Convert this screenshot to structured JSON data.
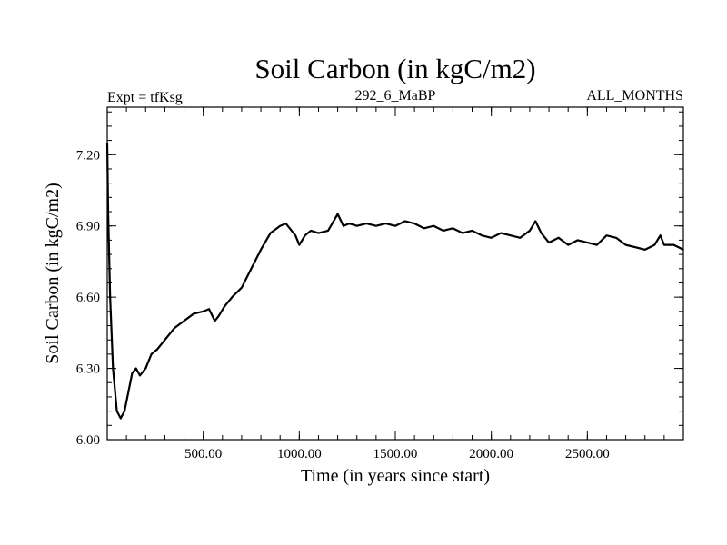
{
  "chart_data": {
    "type": "line",
    "title": "Soil Carbon (in kgC/m2)",
    "subtitle_left": "Expt = tfKsg",
    "subtitle_center": "292_6_MaBP",
    "subtitle_right": "ALL_MONTHS",
    "xlabel": "Time (in years since start)",
    "ylabel": "Soil Carbon (in kgC/m2)",
    "xlim": [
      0,
      3000
    ],
    "ylim": [
      6.0,
      7.4
    ],
    "x_ticks": [
      500,
      1000,
      1500,
      2000,
      2500
    ],
    "x_tick_labels": [
      "500.00",
      "1000.00",
      "1500.00",
      "2000.00",
      "2500.00"
    ],
    "y_ticks": [
      6.0,
      6.3,
      6.6,
      6.9,
      7.2
    ],
    "y_tick_labels": [
      "6.00",
      "6.30",
      "6.60",
      "6.90",
      "7.20"
    ],
    "series": [
      {
        "name": "Soil Carbon",
        "color": "#000000",
        "x": [
          0,
          5,
          15,
          30,
          50,
          70,
          90,
          110,
          130,
          150,
          170,
          200,
          230,
          260,
          300,
          350,
          400,
          450,
          500,
          530,
          560,
          580,
          610,
          650,
          700,
          750,
          800,
          850,
          900,
          930,
          960,
          980,
          1000,
          1030,
          1060,
          1100,
          1150,
          1200,
          1230,
          1260,
          1300,
          1350,
          1400,
          1450,
          1500,
          1550,
          1600,
          1650,
          1700,
          1750,
          1800,
          1850,
          1900,
          1950,
          2000,
          2050,
          2100,
          2150,
          2200,
          2230,
          2260,
          2300,
          2350,
          2400,
          2450,
          2500,
          2550,
          2600,
          2650,
          2700,
          2750,
          2800,
          2850,
          2880,
          2900,
          2950,
          3000
        ],
        "values": [
          7.25,
          6.95,
          6.6,
          6.3,
          6.12,
          6.09,
          6.12,
          6.2,
          6.28,
          6.3,
          6.27,
          6.3,
          6.36,
          6.38,
          6.42,
          6.47,
          6.5,
          6.53,
          6.54,
          6.55,
          6.5,
          6.52,
          6.56,
          6.6,
          6.64,
          6.72,
          6.8,
          6.87,
          6.9,
          6.91,
          6.88,
          6.86,
          6.82,
          6.86,
          6.88,
          6.87,
          6.88,
          6.95,
          6.9,
          6.91,
          6.9,
          6.91,
          6.9,
          6.91,
          6.9,
          6.92,
          6.91,
          6.89,
          6.9,
          6.88,
          6.89,
          6.87,
          6.88,
          6.86,
          6.85,
          6.87,
          6.86,
          6.85,
          6.88,
          6.92,
          6.87,
          6.83,
          6.85,
          6.82,
          6.84,
          6.83,
          6.82,
          6.86,
          6.85,
          6.82,
          6.81,
          6.8,
          6.82,
          6.86,
          6.82,
          6.82,
          6.8
        ]
      }
    ]
  }
}
